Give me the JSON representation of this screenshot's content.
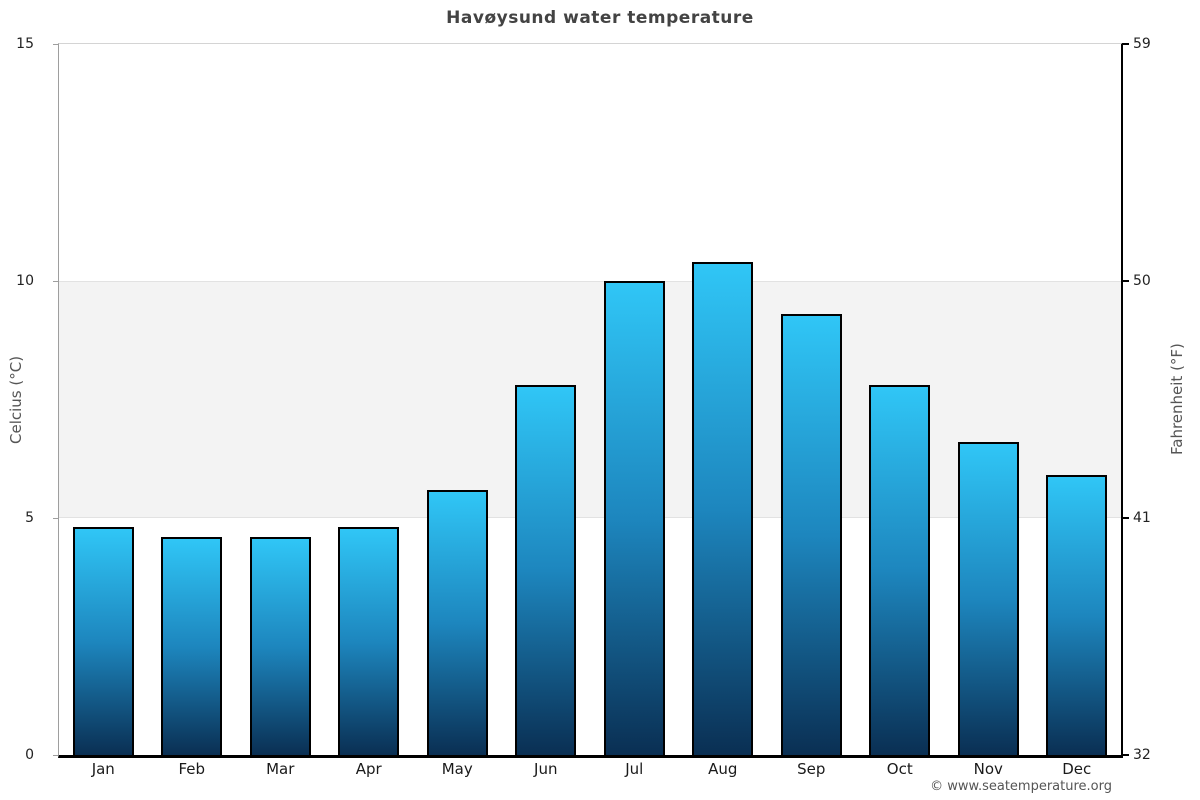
{
  "chart_data": {
    "type": "bar",
    "title": "Havøysund water temperature",
    "categories": [
      "Jan",
      "Feb",
      "Mar",
      "Apr",
      "May",
      "Jun",
      "Jul",
      "Aug",
      "Sep",
      "Oct",
      "Nov",
      "Dec"
    ],
    "values": [
      4.8,
      4.6,
      4.6,
      4.8,
      5.6,
      7.8,
      10.0,
      10.4,
      9.3,
      7.8,
      6.6,
      5.9
    ],
    "ylabel_left": "Celcius (°C)",
    "ylabel_right": "Fahrenheit (°F)",
    "xlabel": "",
    "ylim": [
      0,
      15
    ],
    "yticks_left": [
      "15",
      "10",
      "5",
      "0"
    ],
    "yticks_right": [
      "59",
      "50",
      "41",
      "32"
    ],
    "shaded_band_celsius": [
      5,
      10
    ],
    "legend": "none",
    "grid": "off",
    "colors": {
      "bar_gradient_top": "#30c6f6",
      "bar_gradient_mid": "#1d86be",
      "bar_gradient_bottom": "#0a2f53",
      "bar_border": "#000000",
      "band_background": "#f3f3f3",
      "band_edge": "#e2e2e2",
      "axis_left": "#9e9e9e",
      "axis_right": "#000000",
      "axis_bottom": "#000000",
      "title_text": "#434343"
    }
  },
  "footer": {
    "copyright": "© www.seatemperature.org"
  }
}
